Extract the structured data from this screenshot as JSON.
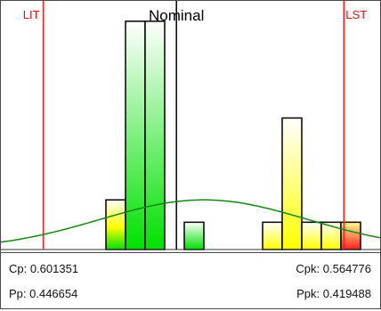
{
  "chart_data": {
    "type": "bar",
    "title": "",
    "xlabel": "",
    "ylabel": "",
    "bars": [
      {
        "bin": 0,
        "value": 1.0
      },
      {
        "bin": 1,
        "value": 4.6
      },
      {
        "bin": 2,
        "value": 4.6
      },
      {
        "bin": 4,
        "value": 0.55
      },
      {
        "bin": 8,
        "value": 0.55
      },
      {
        "bin": 9,
        "value": 2.65
      },
      {
        "bin": 10,
        "value": 0.55
      },
      {
        "bin": 11,
        "value": 0.55
      },
      {
        "bin": 12,
        "value": 0.55
      }
    ],
    "ylim": [
      0,
      4.8
    ],
    "spec_limits": {
      "lower": {
        "label": "LIT",
        "bin_position": -3.2
      },
      "upper": {
        "label": "LST",
        "bin_position": 12.15
      },
      "nominal": {
        "label": "Nominal",
        "bin_position": 3.6
      }
    },
    "fit_curve": {
      "type": "normal",
      "peak_value": 1.0,
      "peak_bin_position": 5.0,
      "sigma_bins": 5.3,
      "color": "#118811"
    },
    "colors": {
      "in_spec_green": "#00e000",
      "near_limit_yellow": "#ffff00",
      "out_spec_red": "#ff2020",
      "spec_line": "#ff1a1a"
    }
  },
  "stats": {
    "cp": "Cp: 0.601351",
    "cpk": "Cpk: 0.564776",
    "pp": "Pp: 0.446654",
    "ppk": "Ppk: 0.419488"
  }
}
